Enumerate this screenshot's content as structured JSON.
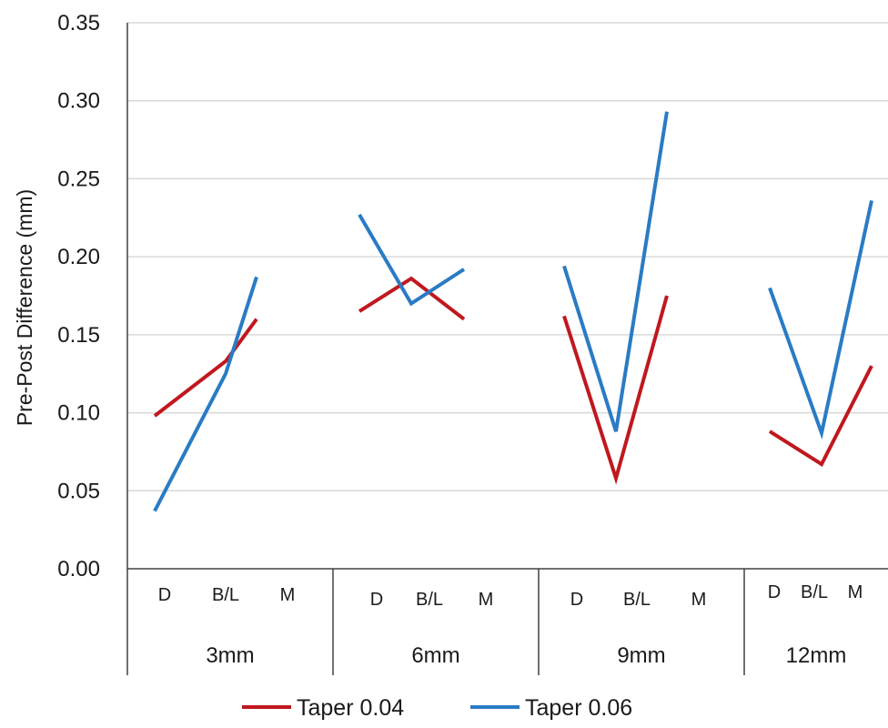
{
  "chart_data": {
    "type": "line",
    "ylabel": "Pre-Post Difference (mm)",
    "ylim": [
      0,
      0.35
    ],
    "yticks": [
      "0.00",
      "0.05",
      "0.10",
      "0.15",
      "0.20",
      "0.25",
      "0.30",
      "0.35"
    ],
    "grid": true,
    "legend_position": "bottom",
    "groups": [
      {
        "label": "3mm",
        "categories": [
          "D",
          "B/L",
          "M"
        ]
      },
      {
        "label": "6mm",
        "categories": [
          "D",
          "B/L",
          "M"
        ]
      },
      {
        "label": "9mm",
        "categories": [
          "D",
          "B/L",
          "M"
        ]
      },
      {
        "label": "12mm",
        "categories": [
          "D",
          "B/L",
          "M"
        ]
      }
    ],
    "series": [
      {
        "name": "Taper 0.04",
        "color": "#c0181f",
        "values": [
          [
            0.098,
            0.133,
            0.16
          ],
          [
            0.165,
            0.186,
            0.16
          ],
          [
            0.162,
            0.058,
            0.175
          ],
          [
            0.088,
            0.067,
            0.13
          ]
        ]
      },
      {
        "name": "Taper 0.06",
        "color": "#2a7bc4",
        "values": [
          [
            0.037,
            0.125,
            0.187
          ],
          [
            0.227,
            0.17,
            0.192
          ],
          [
            0.194,
            0.088,
            0.293
          ],
          [
            0.18,
            0.087,
            0.236
          ]
        ]
      }
    ]
  }
}
